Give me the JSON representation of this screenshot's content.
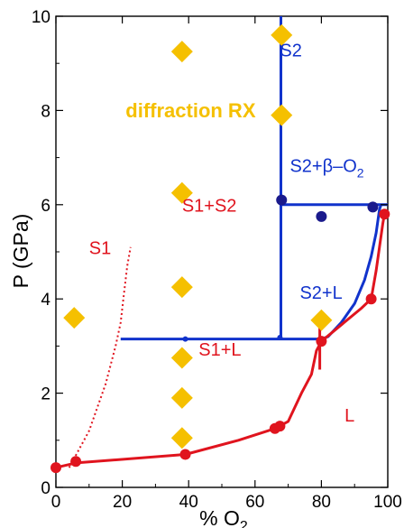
{
  "chart_data": {
    "type": "scatter",
    "title": "",
    "xlabel": "% O",
    "xlabel_sub": "2",
    "ylabel": "P (GPa)",
    "xlim": [
      0,
      100
    ],
    "ylim": [
      0,
      10
    ],
    "x_ticks": [
      "0",
      "20",
      "40",
      "60",
      "80",
      "100"
    ],
    "y_ticks": [
      "0",
      "2",
      "4",
      "6",
      "8",
      "10"
    ],
    "grid": false,
    "colors": {
      "blue": "#1133cc",
      "navy": "#1a1a8c",
      "red": "#e0141e",
      "gold": "#f5c000"
    },
    "series": [
      {
        "name": "diffraction RX",
        "marker": "diamond",
        "color": "#f5c000",
        "points": [
          [
            68,
            9.6
          ],
          [
            38,
            9.25
          ],
          [
            68,
            7.9
          ],
          [
            38,
            6.25
          ],
          [
            38,
            4.25
          ],
          [
            5.5,
            3.6
          ],
          [
            80,
            3.55
          ],
          [
            38,
            2.75
          ],
          [
            38,
            1.9
          ],
          [
            38,
            1.05
          ]
        ]
      },
      {
        "marker": "circle",
        "color": "#1a1a8c",
        "points": [
          [
            68,
            6.1
          ],
          [
            80,
            5.75
          ],
          [
            95.5,
            5.95
          ]
        ]
      },
      {
        "marker": "circle",
        "color": "#e0141e",
        "points": [
          [
            0,
            0.42
          ],
          [
            6,
            0.55
          ],
          [
            39,
            0.7
          ],
          [
            66,
            1.25
          ],
          [
            67.5,
            1.3
          ],
          [
            80,
            3.1
          ],
          [
            95,
            4.0
          ],
          [
            99,
            5.8
          ]
        ]
      },
      {
        "marker": "small-dot",
        "color": "#1133cc",
        "points": [
          [
            39,
            3.15
          ],
          [
            67.5,
            3.18
          ]
        ]
      }
    ],
    "lines": [
      {
        "color": "#1133cc",
        "style": "solid",
        "points": [
          [
            67.8,
            10
          ],
          [
            67.8,
            3.15
          ]
        ]
      },
      {
        "color": "#1133cc",
        "style": "solid",
        "points": [
          [
            19.5,
            3.15
          ],
          [
            80,
            3.15
          ],
          [
            82,
            3.2
          ],
          [
            86,
            3.5
          ],
          [
            90,
            3.9
          ],
          [
            93,
            4.4
          ],
          [
            95,
            4.9
          ],
          [
            96.5,
            5.4
          ],
          [
            97.5,
            5.9
          ],
          [
            98,
            6.0
          ]
        ]
      },
      {
        "color": "#1133cc",
        "style": "solid",
        "points": [
          [
            67.8,
            6.0
          ],
          [
            100,
            6.0
          ]
        ]
      },
      {
        "color": "#e0141e",
        "style": "solid",
        "points": [
          [
            0,
            0.42
          ],
          [
            6,
            0.52
          ],
          [
            39,
            0.7
          ],
          [
            55,
            1.0
          ],
          [
            66,
            1.25
          ],
          [
            70,
            1.4
          ],
          [
            74,
            2.0
          ],
          [
            77,
            2.4
          ],
          [
            78.5,
            2.9
          ],
          [
            80,
            3.1
          ],
          [
            92,
            3.8
          ],
          [
            95,
            4.0
          ],
          [
            96.5,
            4.6
          ],
          [
            97.5,
            5.1
          ],
          [
            98.5,
            5.6
          ],
          [
            99,
            5.8
          ]
        ]
      },
      {
        "color": "#e0141e",
        "style": "dotted",
        "points": [
          [
            4,
            0.42
          ],
          [
            10,
            1.2
          ],
          [
            15,
            2.2
          ],
          [
            18,
            3.0
          ],
          [
            19.5,
            3.5
          ],
          [
            20.5,
            4.1
          ],
          [
            21.5,
            4.7
          ],
          [
            22.5,
            5.1
          ]
        ]
      },
      {
        "color": "#e0141e",
        "style": "solid",
        "points": [
          [
            79.5,
            2.5
          ],
          [
            79.5,
            3.5
          ]
        ]
      }
    ],
    "annotations": [
      {
        "text": "S2",
        "color": "#1133cc",
        "x": 67.5,
        "y": 9.15
      },
      {
        "text": "diffraction RX",
        "color": "#f5c000",
        "x": 21,
        "y": 7.85,
        "bold": true
      },
      {
        "text": "S2+β–O",
        "sub": "2",
        "color": "#1133cc",
        "x": 70.5,
        "y": 6.7
      },
      {
        "text": "S1+S2",
        "color": "#e0141e",
        "x": 38,
        "y": 5.85
      },
      {
        "text": "S1",
        "color": "#e0141e",
        "x": 10,
        "y": 4.95
      },
      {
        "text": "S2+L",
        "color": "#1133cc",
        "x": 73.5,
        "y": 4.0
      },
      {
        "text": "S1+L",
        "color": "#e0141e",
        "x": 43,
        "y": 2.8
      },
      {
        "text": "L",
        "color": "#e0141e",
        "x": 87,
        "y": 1.4
      }
    ]
  }
}
